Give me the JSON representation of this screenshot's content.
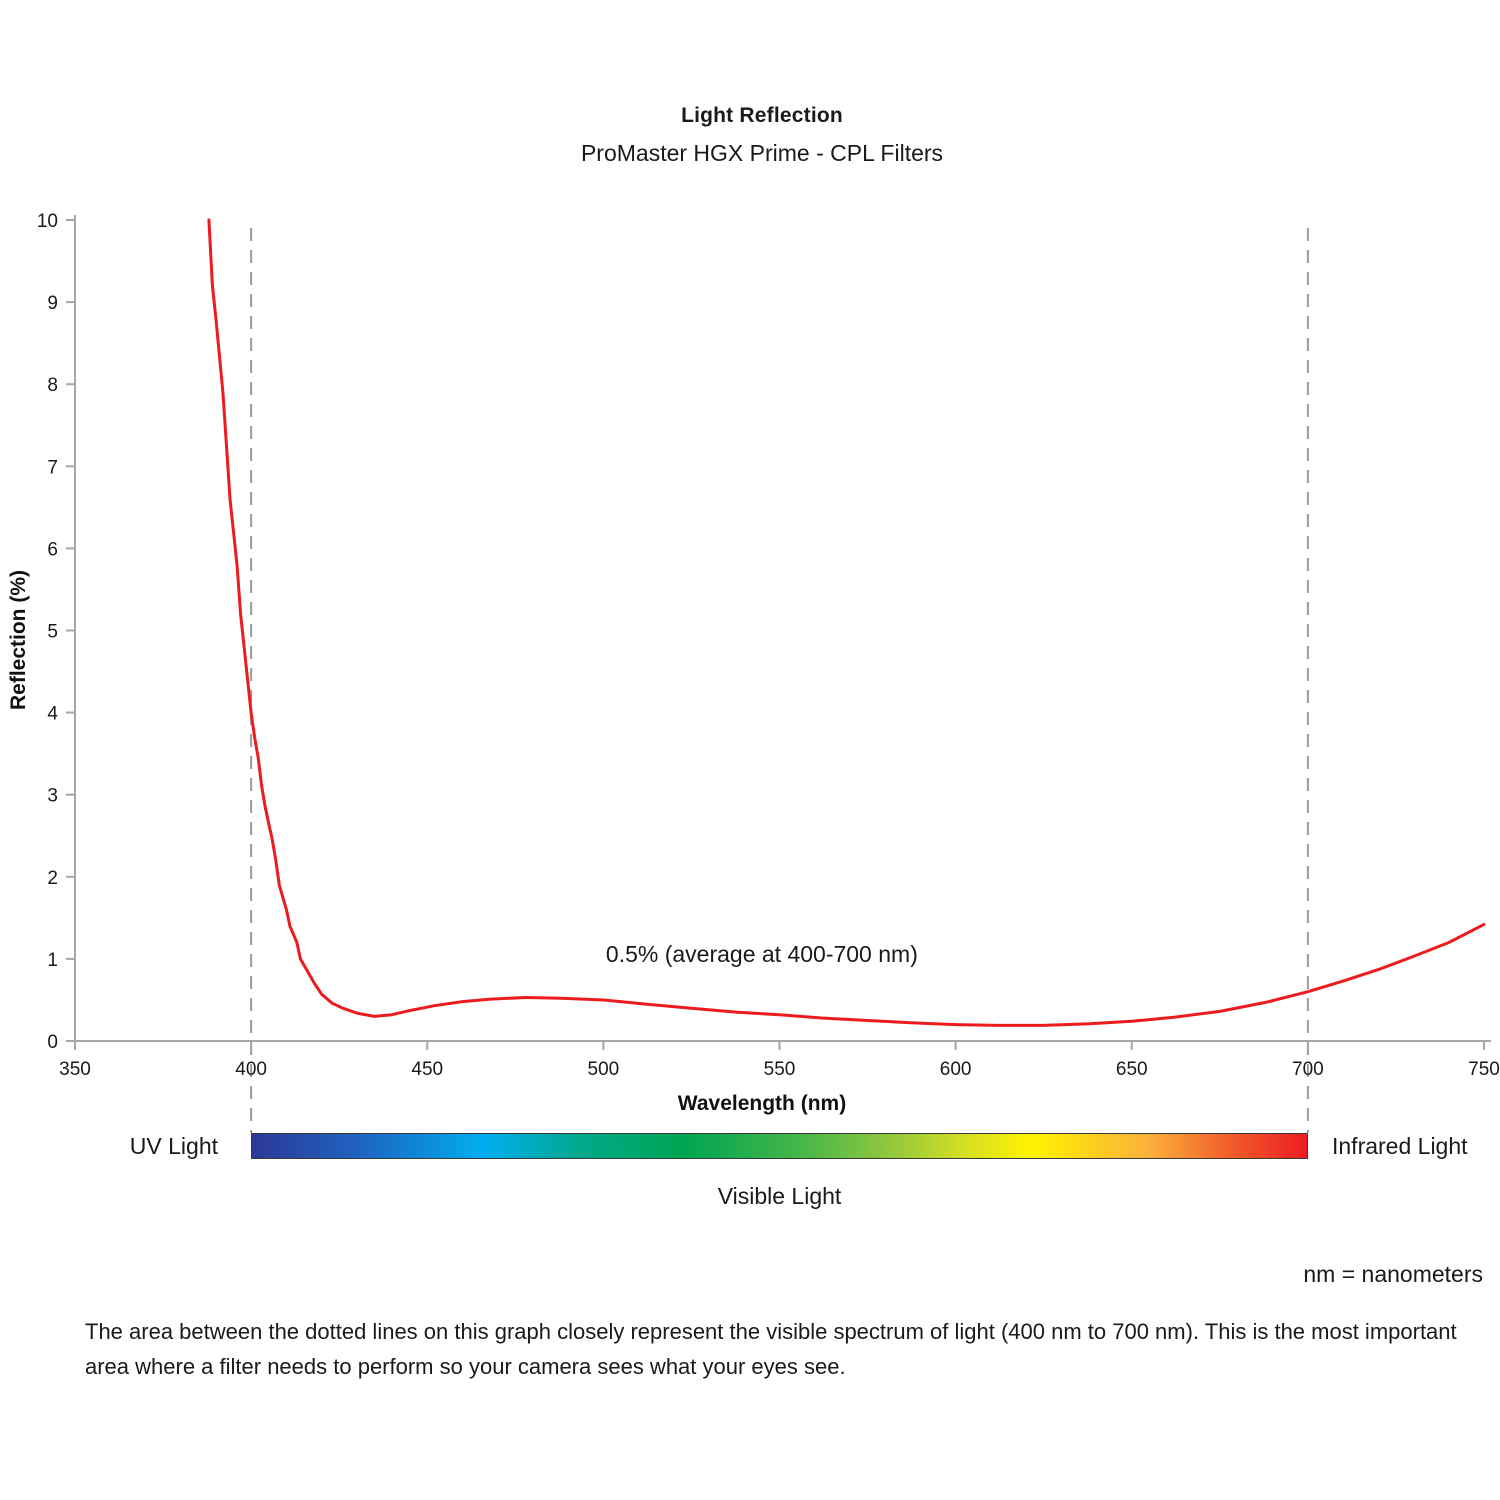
{
  "chart_data": {
    "type": "line",
    "title": "Light Reflection",
    "subtitle": "ProMaster HGX Prime - CPL Filters",
    "xlabel": "Wavelength (nm)",
    "ylabel": "Reflection (%)",
    "xlim": [
      350,
      750
    ],
    "ylim": [
      0,
      10
    ],
    "xticks": [
      350,
      400,
      450,
      500,
      550,
      600,
      650,
      700,
      750
    ],
    "yticks": [
      0,
      1,
      2,
      3,
      4,
      5,
      6,
      7,
      8,
      9,
      10
    ],
    "grid": false,
    "legend": "none",
    "dashed_vlines": [
      400,
      700
    ],
    "annotation": {
      "text": "0.5% (average at 400-700 nm)",
      "x": 545,
      "y": 0.96
    },
    "series": [
      {
        "name": "reflection",
        "color": "#ec1b1e",
        "points": [
          [
            388,
            10
          ],
          [
            389,
            9.2
          ],
          [
            390,
            8.8
          ],
          [
            391,
            8.35
          ],
          [
            392,
            7.9
          ],
          [
            393,
            7.25
          ],
          [
            394,
            6.6
          ],
          [
            395,
            6.2
          ],
          [
            396,
            5.8
          ],
          [
            397,
            5.2
          ],
          [
            398,
            4.8
          ],
          [
            399,
            4.4
          ],
          [
            400,
            4.0
          ],
          [
            401,
            3.7
          ],
          [
            402,
            3.45
          ],
          [
            403,
            3.1
          ],
          [
            404,
            2.85
          ],
          [
            405,
            2.65
          ],
          [
            406,
            2.45
          ],
          [
            407,
            2.2
          ],
          [
            408,
            1.9
          ],
          [
            409,
            1.75
          ],
          [
            410,
            1.6
          ],
          [
            411,
            1.4
          ],
          [
            412,
            1.3
          ],
          [
            413,
            1.2
          ],
          [
            414,
            1.0
          ],
          [
            416,
            0.85
          ],
          [
            418,
            0.7
          ],
          [
            420,
            0.57
          ],
          [
            423,
            0.46
          ],
          [
            426,
            0.4
          ],
          [
            430,
            0.34
          ],
          [
            435,
            0.3
          ],
          [
            440,
            0.32
          ],
          [
            445,
            0.37
          ],
          [
            452,
            0.43
          ],
          [
            460,
            0.48
          ],
          [
            468,
            0.51
          ],
          [
            478,
            0.53
          ],
          [
            488,
            0.52
          ],
          [
            500,
            0.5
          ],
          [
            512,
            0.45
          ],
          [
            525,
            0.4
          ],
          [
            538,
            0.35
          ],
          [
            550,
            0.32
          ],
          [
            562,
            0.28
          ],
          [
            575,
            0.25
          ],
          [
            588,
            0.22
          ],
          [
            600,
            0.2
          ],
          [
            612,
            0.19
          ],
          [
            625,
            0.19
          ],
          [
            638,
            0.21
          ],
          [
            650,
            0.24
          ],
          [
            662,
            0.29
          ],
          [
            675,
            0.36
          ],
          [
            688,
            0.47
          ],
          [
            700,
            0.6
          ],
          [
            710,
            0.73
          ],
          [
            720,
            0.87
          ],
          [
            730,
            1.03
          ],
          [
            740,
            1.2
          ],
          [
            750,
            1.42
          ]
        ]
      }
    ]
  },
  "spectrum": {
    "uv_label": "UV Light",
    "visible_label": "Visible Light",
    "infrared_label": "Infrared Light",
    "range_nm": [
      400,
      700
    ],
    "gradient_stops": [
      "#2c3896 0%",
      "#1f63c0 10%",
      "#00aeef 22%",
      "#00a98c 31%",
      "#00a551 41%",
      "#45b649 52%",
      "#8dc63f 60%",
      "#d9e021 68%",
      "#fff200 74%",
      "#fbb03b 85%",
      "#f15a29 93%",
      "#ed1c24 100%"
    ]
  },
  "notes": {
    "nm_note": "nm = nanometers",
    "footer": "The area between the dotted lines on this graph closely represent the visible spectrum of light (400 nm to 700 nm). This is the most important area where a filter needs to perform so your camera sees what your eyes see."
  }
}
